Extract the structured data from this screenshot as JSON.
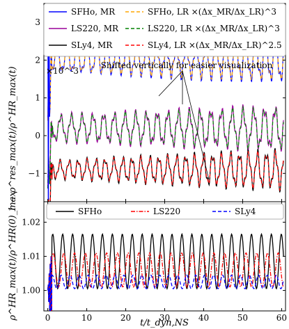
{
  "chart_data": [
    {
      "type": "line",
      "panel": "top",
      "ylabel": "1 − ρ^res_max(t)/ρ^HR_max(t)",
      "y_multiplier": "×10^-3",
      "xlim": [
        -1,
        61
      ],
      "ylim": [
        -1.75,
        3.5
      ],
      "yticks": [
        -1,
        0,
        1,
        2,
        3
      ],
      "annotation": "Shifted vertically for easier visualization",
      "legend": [
        {
          "label": "SFHo, MR",
          "color": "#0000ff",
          "dash": "solid"
        },
        {
          "label": "SFHo, LR ×(Δx_MR/Δx_LR)^3",
          "color": "#ffa500",
          "dash": "dashed"
        },
        {
          "label": "LS220, MR",
          "color": "#990099",
          "dash": "solid"
        },
        {
          "label": "LS220, LR ×(Δx_MR/Δx_LR)^3",
          "color": "#008000",
          "dash": "dashed"
        },
        {
          "label": "SLy4, MR",
          "color": "#000000",
          "dash": "solid"
        },
        {
          "label": "SLy4, LR ×(Δx_MR/Δx_LR)^2.5",
          "color": "#ff0000",
          "dash": "dashed"
        }
      ],
      "series": [
        {
          "name": "SFHo, MR",
          "offset": 2.0,
          "amp_start": 0.25,
          "amp_end": 0.5,
          "period": 2.55,
          "color": "#0000ff"
        },
        {
          "name": "SFHo, LR ×(Δx_MR/Δx_LR)^3",
          "offset": 2.0,
          "amp_start": 0.25,
          "amp_end": 0.5,
          "period": 2.55,
          "color": "#ffa500"
        },
        {
          "name": "LS220, MR",
          "offset": 0.2,
          "amp_start": 0.3,
          "amp_end": 0.5,
          "period": 2.75,
          "color": "#990099"
        },
        {
          "name": "LS220, LR ×(Δx_MR/Δx_LR)^3",
          "offset": 0.2,
          "amp_start": 0.3,
          "amp_end": 0.5,
          "period": 2.75,
          "color": "#008000"
        },
        {
          "name": "SLy4, MR",
          "offset": -0.9,
          "amp_start": 0.2,
          "amp_end": 0.45,
          "period": 2.3,
          "color": "#000000"
        },
        {
          "name": "SLy4, LR ×(Δx_MR/Δx_LR)^2.5",
          "offset": -0.9,
          "amp_start": 0.2,
          "amp_end": 0.45,
          "period": 2.3,
          "color": "#ff0000"
        }
      ]
    },
    {
      "type": "line",
      "panel": "bottom",
      "xlabel": "t/t_dyn,NS",
      "ylabel": "ρ^HR_max(t)/ρ^HR(0)_max",
      "xlim": [
        -1,
        61
      ],
      "ylim": [
        0.994,
        1.026
      ],
      "xticks": [
        0,
        10,
        20,
        30,
        40,
        50,
        60
      ],
      "yticks": [
        1.0,
        1.01,
        1.02
      ],
      "legend": [
        {
          "label": "SFHo",
          "color": "#000000",
          "dash": "solid"
        },
        {
          "label": "LS220",
          "color": "#ff0000",
          "dash": "dashdot"
        },
        {
          "label": "SLy4",
          "color": "#0000ff",
          "dash": "dashed"
        }
      ],
      "series": [
        {
          "name": "SFHo",
          "mid": 1.0085,
          "amp": 0.008,
          "period": 2.55,
          "color": "#000000"
        },
        {
          "name": "LS220",
          "mid": 1.006,
          "amp": 0.005,
          "period": 2.75,
          "color": "#ff0000"
        },
        {
          "name": "SLy4",
          "mid": 1.0025,
          "amp": 0.002,
          "period": 2.3,
          "color": "#0000ff"
        }
      ]
    }
  ]
}
